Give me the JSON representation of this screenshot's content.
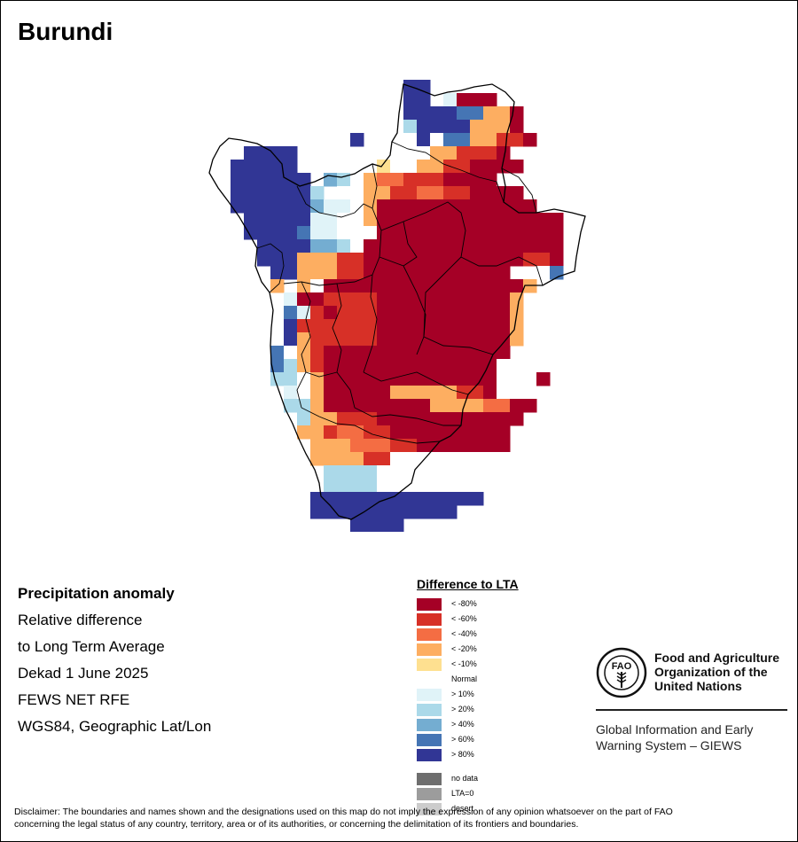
{
  "title": "Burundi",
  "info": {
    "heading": "Precipitation anomaly",
    "line1": "Relative difference",
    "line2": "to Long Term Average",
    "dekad": "Dekad 1 June 2025",
    "source": "FEWS NET RFE",
    "projection": "WGS84, Geographic Lat/Lon"
  },
  "legend": {
    "title": "Difference to LTA",
    "classes": [
      {
        "label": "< -80%",
        "color": "#a50026"
      },
      {
        "label": "< -60%",
        "color": "#d73027"
      },
      {
        "label": "< -40%",
        "color": "#f46d43"
      },
      {
        "label": "< -20%",
        "color": "#fdae61"
      },
      {
        "label": "< -10%",
        "color": "#fee090"
      },
      {
        "label": "Normal",
        "color": "#ffffff"
      },
      {
        "label": "> 10%",
        "color": "#e0f3f8"
      },
      {
        "label": "> 20%",
        "color": "#abd9e9"
      },
      {
        "label": "> 40%",
        "color": "#74add1"
      },
      {
        "label": "> 60%",
        "color": "#4575b4"
      },
      {
        "label": "> 80%",
        "color": "#313695"
      }
    ],
    "extra": [
      {
        "label": "no data",
        "color": "#6e6e6e"
      },
      {
        "label": "LTA=0",
        "color": "#9c9c9c"
      },
      {
        "label": "desert",
        "color": "#cccccc"
      }
    ]
  },
  "fao": {
    "name_line1": "Food and Agriculture",
    "name_line2": "Organization of the",
    "name_line3": "United Nations",
    "system_line1": "Global Information and Early",
    "system_line2": "Warning System – GIEWS",
    "logo_text": "FIAT PANIS"
  },
  "disclaimer": {
    "line1": "Disclaimer: The boundaries and names shown and the designations used on this map do not imply the expression of any opinion whatsoever on the part of FAO",
    "line2": "concerning the legal status of any country, territory, area or of its authorities, or concerning the delimitation of its frontiers and boundaries."
  },
  "map": {
    "dominant_class": "< -80%",
    "regions": {
      "north": "mixed: > 80% west, < -20% to < -80% east",
      "west": "> 80% along the northwest edge",
      "centre": "< -80%",
      "east": "< -80% with normal in the far east",
      "south": "< -40% to < -80%, > 20% and > 80% at the southern tip"
    }
  }
}
